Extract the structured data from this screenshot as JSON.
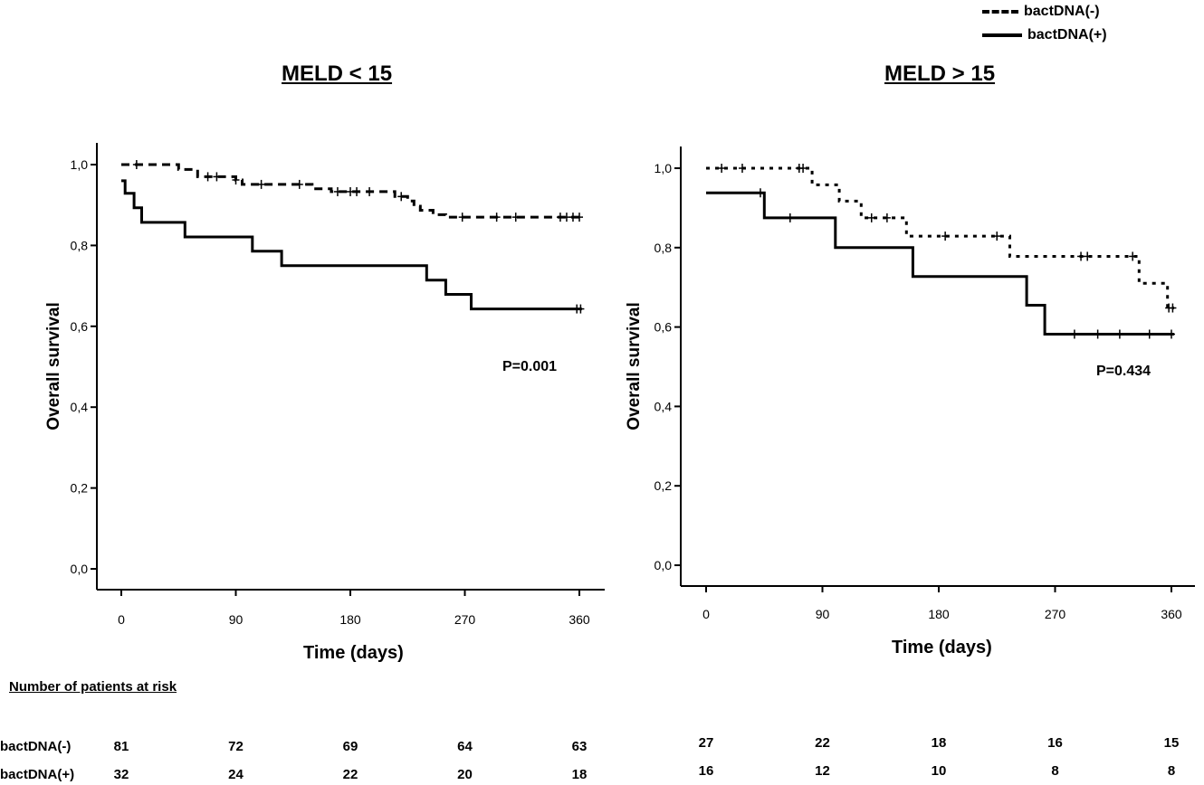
{
  "legend": {
    "items": [
      {
        "label": "bactDNA(-)",
        "style": "dashed"
      },
      {
        "label": "bactDNA(+)",
        "style": "solid"
      }
    ]
  },
  "chart_data": [
    {
      "type": "line",
      "title": "MELD < 15",
      "xlabel": "Time (days)",
      "ylabel": "Overall survival",
      "xlim": [
        0,
        360
      ],
      "ylim": [
        0,
        1
      ],
      "xticks": [
        "0",
        "90",
        "180",
        "270",
        "360"
      ],
      "yticks": [
        "0,0",
        "0,2",
        "0,4",
        "0,6",
        "0,8",
        "1,0"
      ],
      "annotation": "P=0.001",
      "series": [
        {
          "name": "bactDNA(-)",
          "style": "dashed",
          "steps": [
            [
              0,
              1.0
            ],
            [
              45,
              1.0
            ],
            [
              45,
              0.988
            ],
            [
              60,
              0.988
            ],
            [
              60,
              0.97
            ],
            [
              90,
              0.97
            ],
            [
              90,
              0.962
            ],
            [
              95,
              0.962
            ],
            [
              95,
              0.951
            ],
            [
              150,
              0.951
            ],
            [
              150,
              0.94
            ],
            [
              165,
              0.94
            ],
            [
              165,
              0.933
            ],
            [
              215,
              0.933
            ],
            [
              215,
              0.921
            ],
            [
              225,
              0.921
            ],
            [
              225,
              0.91
            ],
            [
              230,
              0.91
            ],
            [
              230,
              0.897
            ],
            [
              235,
              0.897
            ],
            [
              235,
              0.887
            ],
            [
              245,
              0.887
            ],
            [
              245,
              0.876
            ],
            [
              255,
              0.876
            ],
            [
              255,
              0.87
            ],
            [
              362,
              0.87
            ]
          ],
          "censored": [
            [
              12,
              1.0
            ],
            [
              68,
              0.97
            ],
            [
              75,
              0.97
            ],
            [
              90,
              0.962
            ],
            [
              110,
              0.951
            ],
            [
              140,
              0.951
            ],
            [
              170,
              0.933
            ],
            [
              180,
              0.933
            ],
            [
              185,
              0.933
            ],
            [
              195,
              0.933
            ],
            [
              220,
              0.921
            ],
            [
              268,
              0.87
            ],
            [
              295,
              0.87
            ],
            [
              310,
              0.87
            ],
            [
              345,
              0.87
            ],
            [
              350,
              0.87
            ],
            [
              355,
              0.87
            ],
            [
              360,
              0.87
            ]
          ]
        },
        {
          "name": "bactDNA(+)",
          "style": "solid",
          "steps": [
            [
              0,
              0.96
            ],
            [
              3,
              0.96
            ],
            [
              3,
              0.929
            ],
            [
              10,
              0.929
            ],
            [
              10,
              0.893
            ],
            [
              16,
              0.893
            ],
            [
              16,
              0.857
            ],
            [
              50,
              0.857
            ],
            [
              50,
              0.821
            ],
            [
              103,
              0.821
            ],
            [
              103,
              0.786
            ],
            [
              126,
              0.786
            ],
            [
              126,
              0.75
            ],
            [
              240,
              0.75
            ],
            [
              240,
              0.714
            ],
            [
              255,
              0.714
            ],
            [
              255,
              0.679
            ],
            [
              275,
              0.679
            ],
            [
              275,
              0.643
            ],
            [
              362,
              0.643
            ]
          ],
          "censored": [
            [
              358,
              0.643
            ],
            [
              361,
              0.643
            ]
          ]
        }
      ],
      "risk": {
        "bactDNA(-)": [
          "81",
          "72",
          "69",
          "64",
          "63"
        ],
        "bactDNA(+)": [
          "32",
          "24",
          "22",
          "20",
          "18"
        ]
      }
    },
    {
      "type": "line",
      "title": "MELD > 15",
      "xlabel": "Time (days)",
      "ylabel": "Overall survival",
      "xlim": [
        0,
        360
      ],
      "ylim": [
        0,
        1
      ],
      "xticks": [
        "0",
        "90",
        "180",
        "270",
        "360"
      ],
      "yticks": [
        "0,0",
        "0,2",
        "0,4",
        "0,6",
        "0,8",
        "1,0"
      ],
      "annotation": "P=0.434",
      "series": [
        {
          "name": "bactDNA(-)",
          "style": "dotted",
          "steps": [
            [
              0,
              1.0
            ],
            [
              82,
              1.0
            ],
            [
              82,
              0.958
            ],
            [
              103,
              0.958
            ],
            [
              103,
              0.917
            ],
            [
              120,
              0.917
            ],
            [
              120,
              0.875
            ],
            [
              155,
              0.875
            ],
            [
              155,
              0.829
            ],
            [
              235,
              0.829
            ],
            [
              235,
              0.778
            ],
            [
              335,
              0.778
            ],
            [
              335,
              0.71
            ],
            [
              357,
              0.71
            ],
            [
              357,
              0.648
            ],
            [
              362,
              0.648
            ]
          ],
          "censored": [
            [
              12,
              1.0
            ],
            [
              28,
              1.0
            ],
            [
              72,
              1.0
            ],
            [
              75,
              1.0
            ],
            [
              128,
              0.875
            ],
            [
              140,
              0.875
            ],
            [
              185,
              0.829
            ],
            [
              225,
              0.829
            ],
            [
              290,
              0.778
            ],
            [
              295,
              0.778
            ],
            [
              330,
              0.778
            ],
            [
              358,
              0.648
            ],
            [
              361,
              0.648
            ]
          ]
        },
        {
          "name": "bactDNA(+)",
          "style": "solid",
          "steps": [
            [
              0,
              0.938
            ],
            [
              45,
              0.938
            ],
            [
              45,
              0.875
            ],
            [
              100,
              0.875
            ],
            [
              100,
              0.8
            ],
            [
              160,
              0.8
            ],
            [
              160,
              0.727
            ],
            [
              248,
              0.727
            ],
            [
              248,
              0.655
            ],
            [
              262,
              0.655
            ],
            [
              262,
              0.582
            ],
            [
              362,
              0.582
            ]
          ],
          "censored": [
            [
              42,
              0.938
            ],
            [
              65,
              0.875
            ],
            [
              285,
              0.582
            ],
            [
              303,
              0.582
            ],
            [
              320,
              0.582
            ],
            [
              343,
              0.582
            ],
            [
              360,
              0.582
            ]
          ]
        }
      ],
      "risk": {
        "bactDNA(-)": [
          "27",
          "22",
          "18",
          "16",
          "15"
        ],
        "bactDNA(+)": [
          "16",
          "12",
          "10",
          "8",
          "8"
        ]
      }
    }
  ],
  "risk_table": {
    "title": "Number of patients at risk",
    "row_labels": [
      "bactDNA(-)",
      "bactDNA(+)"
    ]
  }
}
